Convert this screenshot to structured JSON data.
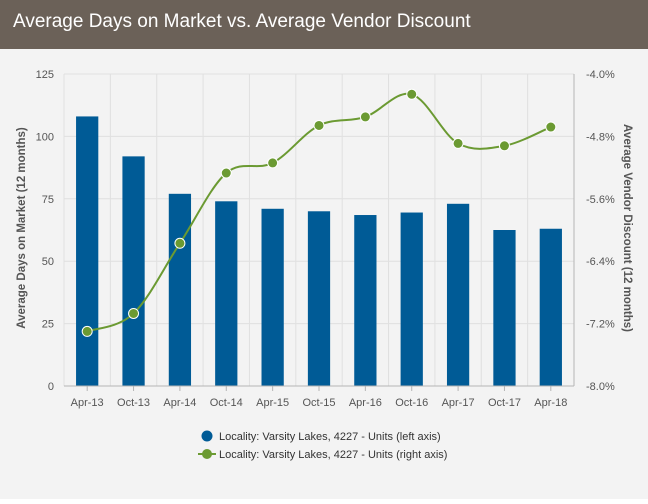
{
  "header": {
    "title": "Average Days on Market vs. Average Vendor Discount"
  },
  "chart_data": {
    "type": "bar+line",
    "categories": [
      "Apr-13",
      "Oct-13",
      "Apr-14",
      "Oct-14",
      "Apr-15",
      "Oct-15",
      "Apr-16",
      "Oct-16",
      "Apr-17",
      "Oct-17",
      "Apr-18"
    ],
    "ylabel_left": "Average Days on Market (12 months)",
    "ylabel_right": "Average Vendor Discount (12 months)",
    "ylim_left": [
      0,
      125
    ],
    "yticks_left": [
      0,
      25,
      50,
      75,
      100,
      125
    ],
    "ylim_right": [
      -8.0,
      -4.0
    ],
    "yticks_right": [
      "-8.0%",
      "-7.2%",
      "-6.4%",
      "-5.6%",
      "-4.8%",
      "-4.0%"
    ],
    "yticks_right_values": [
      -8.0,
      -7.2,
      -6.4,
      -5.6,
      -4.8,
      -4.0
    ],
    "grid": true,
    "legend_position": "bottom",
    "series": [
      {
        "name": "Locality: Varsity Lakes, 4227 - Units (left axis)",
        "type": "bar",
        "axis": "left",
        "color": "#005b96",
        "values": [
          108,
          92,
          77,
          74,
          71,
          70,
          68.5,
          69.5,
          73,
          62.5,
          63
        ]
      },
      {
        "name": "Locality: Varsity Lakes, 4227 - Units (right axis)",
        "type": "line",
        "axis": "right",
        "color": "#6b9a32",
        "values": [
          -7.3,
          -7.07,
          -6.17,
          -5.27,
          -5.14,
          -4.66,
          -4.55,
          -4.26,
          -4.89,
          -4.92,
          -4.68
        ]
      }
    ]
  }
}
